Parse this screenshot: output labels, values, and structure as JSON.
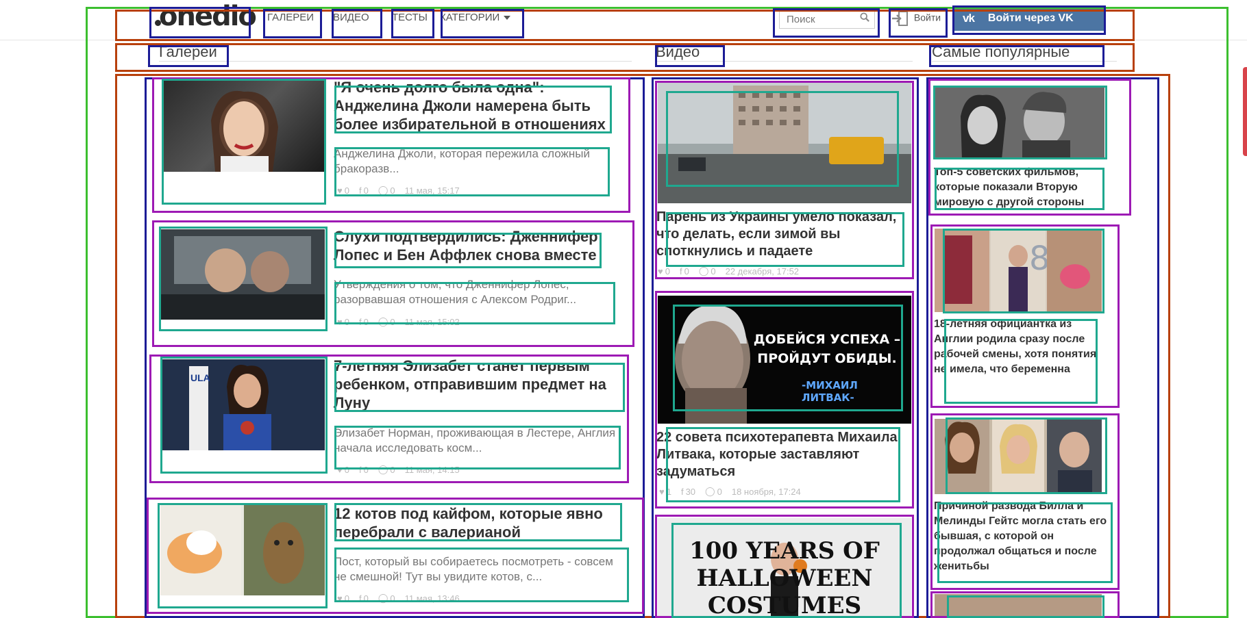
{
  "header": {
    "logo": "onedio",
    "nav": [
      "ГАЛЕРЕИ",
      "ВИДЕО",
      "ТЕСТЫ",
      "КАТЕГОРИИ"
    ],
    "search_placeholder": "Поиск",
    "login_label": "Войти",
    "vk_icon": "vk",
    "vk_label": "Войти через VK"
  },
  "sections": {
    "galleries": "Галереи",
    "video": "Видео",
    "popular": "Самые популярные"
  },
  "galleries": [
    {
      "title": "\"Я очень долго была одна\": Анджелина Джоли намерена быть более избирательной в отношениях",
      "desc": "Анджелина Джоли, которая пережила сложный бракоразв...",
      "likes": "0",
      "shares": "0",
      "comments": "0",
      "date": "11 мая, 15:17"
    },
    {
      "title": "Слухи подтвердились: Дженнифер Лопес и Бен Аффлек снова вместе",
      "desc": "Утверждения о том, что Дженнифер Лопес, разорвавшая отношения с Алексом Родриг...",
      "likes": "0",
      "shares": "0",
      "comments": "0",
      "date": "11 мая, 15:02"
    },
    {
      "title": "7-летняя Элизабет станет первым ребенком, отправившим предмет на Луну",
      "desc": "Элизабет Норман, проживающая в Лестере, Англия начала исследовать косм...",
      "likes": "0",
      "shares": "0",
      "comments": "0",
      "date": "11 мая, 14:15"
    },
    {
      "title": "12 котов под кайфом, которые явно перебрали с валерианой",
      "desc": "Пост, который вы собираетесь посмотреть - совсем не смешной! Тут вы увидите котов, с...",
      "likes": "0",
      "shares": "0",
      "comments": "0",
      "date": "11 мая, 13:46"
    }
  ],
  "videos": [
    {
      "title": "Парень из Украины умело показал, что делать, если зимой вы споткнулись и падаете",
      "likes": "0",
      "shares": "0",
      "comments": "0",
      "date": "22 декабря, 17:52"
    },
    {
      "title": "22 совета психотерапевта Михаила Литвака, которые заставляют задуматься",
      "quote_line1": "ДОБЕЙСЯ УСПЕХА –",
      "quote_line2": "ПРОЙДУТ ОБИДЫ.",
      "quote_author": "-МИХАИЛ ЛИТВАК-",
      "likes": "1",
      "shares": "30",
      "comments": "0",
      "date": "18 ноября, 17:24"
    },
    {
      "title": "",
      "poster_text": "100 YEARS OF HALLOWEEN COSTUMES"
    }
  ],
  "popular": [
    {
      "title": "Топ-5 советских фильмов, которые показали Вторую мировую с другой стороны"
    },
    {
      "title": "18-летняя официантка из Англии родила сразу после рабочей смены, хотя понятия не имела, что беременна"
    },
    {
      "title": "Причиной развода Билла и Мелинды Гейтс могла стать его бывшая, с которой он продолжал общаться и после женитьбы"
    }
  ],
  "colors": {
    "vk": "#4c75a3",
    "overlay_green": "#3cbf2f",
    "overlay_rust": "#b8400c",
    "overlay_navy": "#1c1c96",
    "overlay_purple": "#9d1ab4",
    "overlay_teal": "#1fa88f"
  },
  "icons": [
    "search-icon",
    "login-door-icon",
    "vk-icon",
    "like-icon",
    "facebook-icon",
    "whatsapp-icon",
    "chevron-down-icon"
  ]
}
